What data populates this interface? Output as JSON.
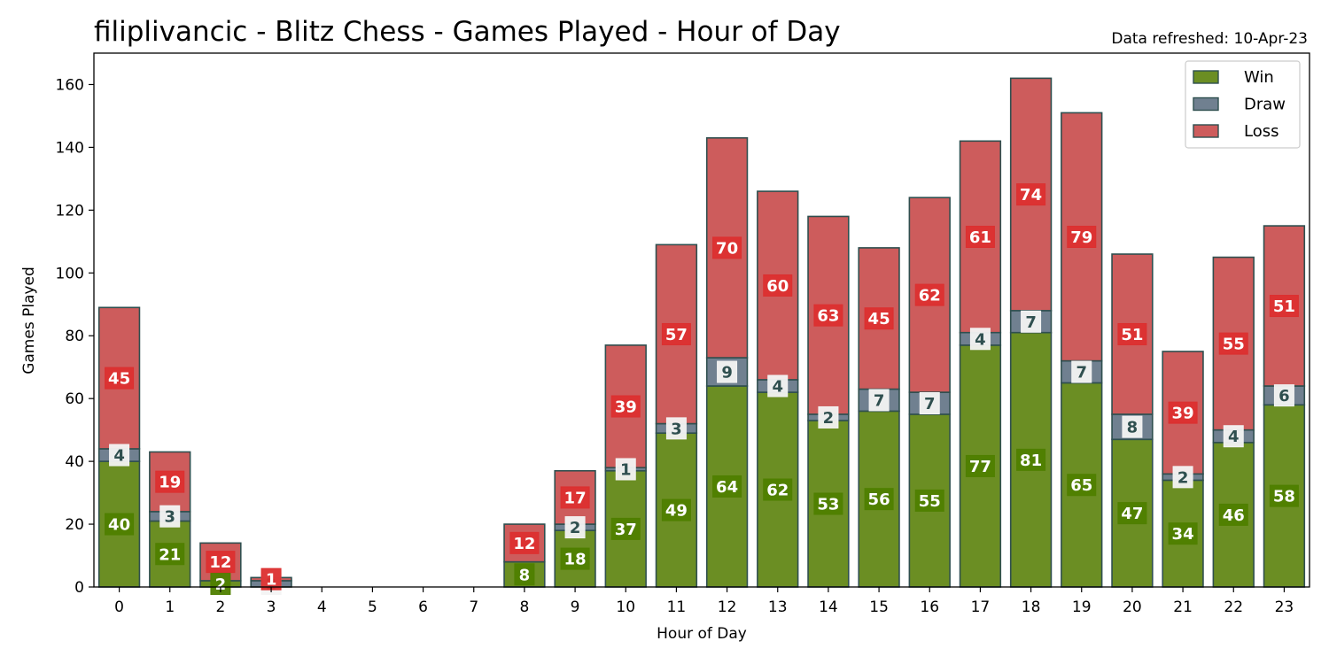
{
  "chart_data": {
    "type": "bar",
    "stacked": true,
    "title": "filiplivancic - Blitz Chess - Games Played - Hour of Day",
    "subtitle": "Data refreshed: 10-Apr-23",
    "xlabel": "Hour of Day",
    "ylabel": "Games Played",
    "ylim": [
      0,
      170
    ],
    "yticks": [
      0,
      20,
      40,
      60,
      80,
      100,
      120,
      140,
      160
    ],
    "grid": false,
    "legend_position": "top-right",
    "categories": [
      "0",
      "1",
      "2",
      "3",
      "4",
      "5",
      "6",
      "7",
      "8",
      "9",
      "10",
      "11",
      "12",
      "13",
      "14",
      "15",
      "16",
      "17",
      "18",
      "19",
      "20",
      "21",
      "22",
      "23"
    ],
    "series": [
      {
        "name": "Win",
        "color": "#6b8e23",
        "label_bg": "#4f7f00",
        "label_fg": "#ffffff",
        "values": [
          40,
          21,
          2,
          0,
          0,
          0,
          0,
          0,
          8,
          18,
          37,
          49,
          64,
          62,
          53,
          56,
          55,
          77,
          81,
          65,
          47,
          34,
          46,
          58
        ]
      },
      {
        "name": "Draw",
        "color": "#708090",
        "label_bg": "#f3f3f3",
        "label_fg": "#2f4f4f",
        "values": [
          4,
          3,
          0,
          2,
          0,
          0,
          0,
          0,
          0,
          2,
          1,
          3,
          9,
          4,
          2,
          7,
          7,
          4,
          7,
          7,
          8,
          2,
          4,
          6
        ]
      },
      {
        "name": "Loss",
        "color": "#cd5c5c",
        "label_bg": "#dc2f2f",
        "label_fg": "#ffffff",
        "values": [
          45,
          19,
          12,
          1,
          0,
          0,
          0,
          0,
          12,
          17,
          39,
          57,
          70,
          60,
          63,
          45,
          62,
          61,
          74,
          79,
          51,
          39,
          55,
          51
        ]
      }
    ],
    "bar_edge_color": "#2f4f4f"
  }
}
